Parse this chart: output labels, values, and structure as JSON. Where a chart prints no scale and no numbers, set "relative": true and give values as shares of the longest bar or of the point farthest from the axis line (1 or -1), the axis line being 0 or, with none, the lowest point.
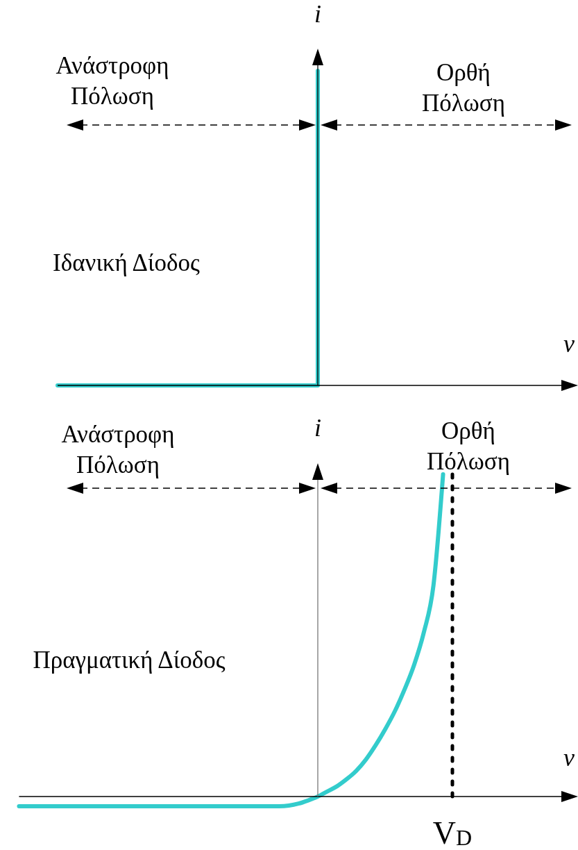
{
  "chart_data": [
    {
      "type": "step",
      "relative": true,
      "categories": [
        null,
        null,
        null
      ],
      "values": [
        0,
        1,
        null
      ],
      "color": "#33cccc",
      "xlabel": "v",
      "ylabel": "i",
      "annotations": [
        "Ανάστροφη\nΠόλωση",
        "Ορθή\nΠόλωση",
        "Ιδανική Δίοδος"
      ]
    },
    {
      "type": "line",
      "relative": true,
      "categories": [
        null,
        null,
        null,
        null,
        null,
        null,
        null,
        null,
        null,
        null,
        null,
        null,
        null,
        null,
        null,
        null,
        null,
        null,
        null,
        null,
        null,
        null,
        null,
        null,
        null,
        null,
        null,
        null,
        null,
        null,
        null,
        null,
        null,
        null,
        null,
        null,
        null,
        null,
        null,
        null,
        null,
        null,
        null,
        null,
        null,
        null,
        null,
        null,
        null,
        null,
        null,
        null,
        null,
        null,
        null,
        null,
        null,
        null,
        null
      ],
      "values": [
        -0.03,
        -0.03,
        -0.03,
        -0.03,
        -0.03,
        -0.03,
        -0.03,
        -0.03,
        -0.03,
        -0.03,
        -0.03,
        -0.03,
        -0.03,
        -0.03,
        -0.03,
        -0.03,
        -0.03,
        -0.03,
        -0.03,
        -0.03,
        -0.03,
        -0.03,
        -0.03,
        -0.03,
        -0.03,
        -0.03,
        -0.03,
        -0.03,
        -0.028,
        -0.022,
        -0.012,
        0,
        0.016,
        0.032,
        0.054,
        0.08,
        0.115,
        0.159,
        0.209,
        0.265,
        0.332,
        0.409,
        0.509,
        0.655,
        1,
        null,
        null,
        null,
        null,
        null,
        null,
        null,
        null,
        null,
        null,
        null,
        null,
        null,
        null
      ],
      "color": "#33cccc",
      "xlabel": "v",
      "ylabel": "i",
      "annotations": [
        "Ανάστροφη\nΠόλωση",
        "Ορθή\nΠόλωση",
        "Πραγματική Δίοδος",
        "V$_{D}$"
      ]
    }
  ]
}
